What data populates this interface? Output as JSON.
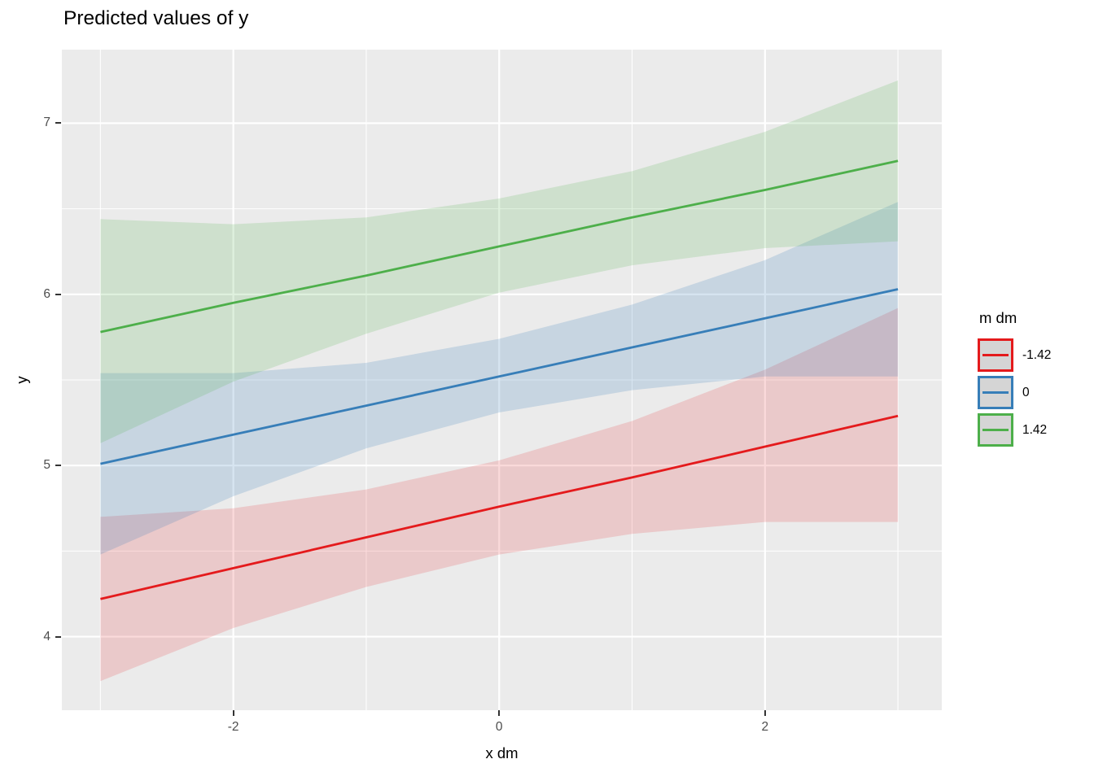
{
  "title": "Predicted values of y",
  "chart_data": {
    "type": "line",
    "title": "Predicted values of y",
    "xlabel": "x dm",
    "ylabel": "y",
    "legend_title": "m dm",
    "legend_position": "right",
    "grid": "major-and-minor",
    "panel_bg": "#EBEBEB",
    "grid_color": "#FFFFFF",
    "xlim": [
      -3.29,
      3.33
    ],
    "ylim": [
      3.57,
      7.43
    ],
    "x": [
      -3,
      -2,
      -1,
      0,
      1,
      2,
      3
    ],
    "x_ticks": [
      {
        "label": "-2",
        "value": -2
      },
      {
        "label": "0",
        "value": 0
      },
      {
        "label": "2",
        "value": 2
      }
    ],
    "y_ticks": [
      {
        "label": "7",
        "value": 7
      },
      {
        "label": "6",
        "value": 6
      },
      {
        "label": "5",
        "value": 5
      },
      {
        "label": "4",
        "value": 4
      }
    ],
    "x_minor": [
      -3,
      -1,
      1,
      3
    ],
    "y_minor": [
      6.5,
      5.5,
      4.5
    ],
    "series": [
      {
        "name": "-1.42",
        "color": "#E41A1C",
        "fill_alpha": 0.16,
        "values": [
          4.22,
          4.4,
          4.58,
          4.76,
          4.93,
          5.11,
          5.29
        ],
        "ci_low": [
          3.74,
          4.05,
          4.29,
          4.48,
          4.6,
          4.67,
          4.67
        ],
        "ci_high": [
          4.7,
          4.75,
          4.86,
          5.03,
          5.26,
          5.56,
          5.92
        ]
      },
      {
        "name": "0",
        "color": "#377EB8",
        "fill_alpha": 0.2,
        "values": [
          5.01,
          5.18,
          5.35,
          5.52,
          5.69,
          5.86,
          6.03
        ],
        "ci_low": [
          4.48,
          4.82,
          5.1,
          5.31,
          5.44,
          5.52,
          5.52
        ],
        "ci_high": [
          5.54,
          5.54,
          5.6,
          5.74,
          5.94,
          6.2,
          6.54
        ]
      },
      {
        "name": "1.42",
        "color": "#4DAF4A",
        "fill_alpha": 0.18,
        "values": [
          5.78,
          5.95,
          6.11,
          6.28,
          6.45,
          6.61,
          6.78
        ],
        "ci_low": [
          5.13,
          5.49,
          5.77,
          6.01,
          6.17,
          6.27,
          6.31
        ],
        "ci_high": [
          6.44,
          6.41,
          6.45,
          6.56,
          6.72,
          6.95,
          7.25
        ]
      }
    ]
  }
}
